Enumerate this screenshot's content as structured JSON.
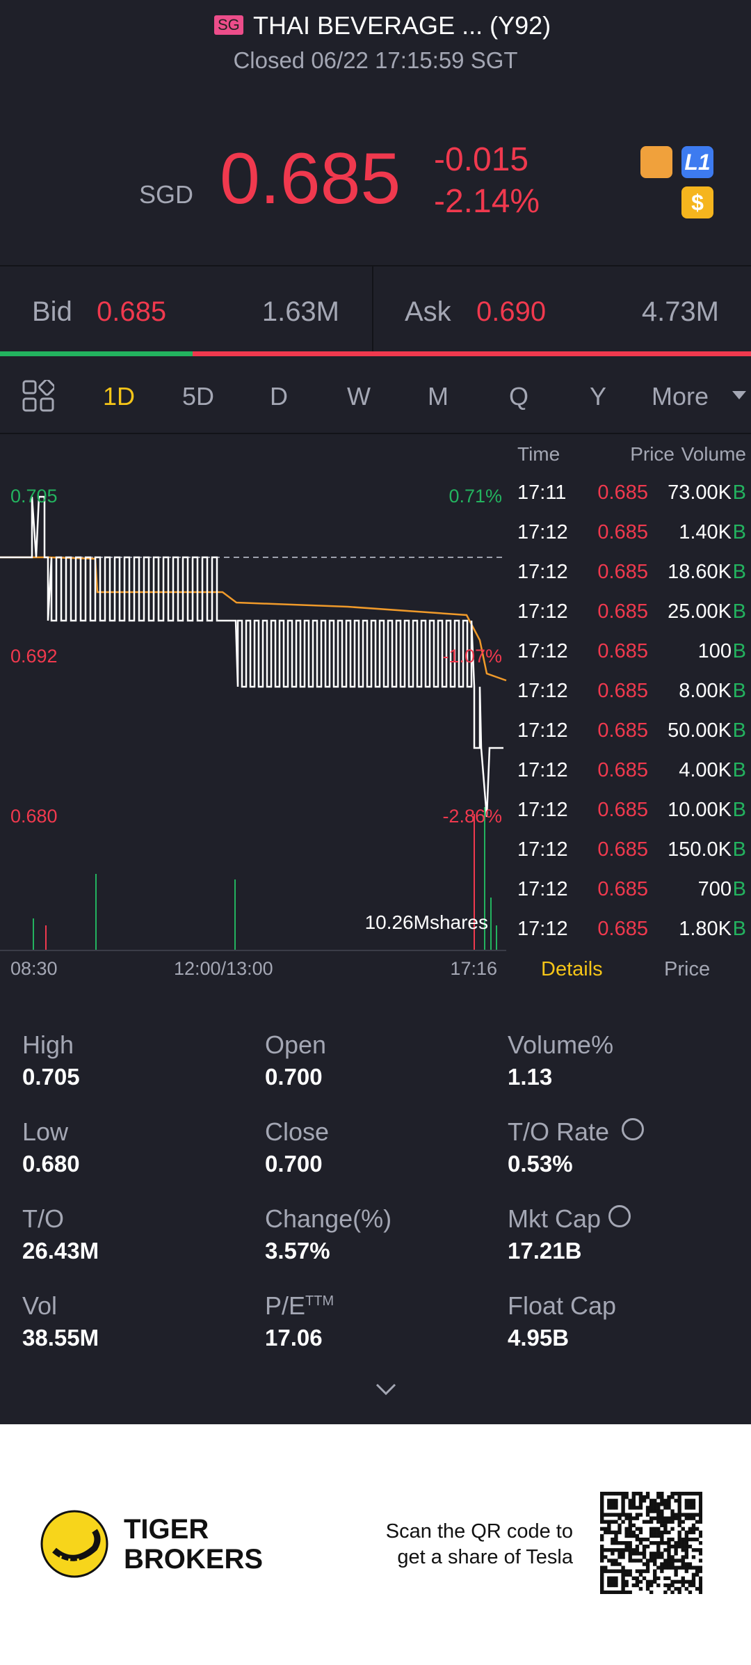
{
  "header": {
    "market": "SG",
    "title": "THAI BEVERAGE ... (Y92)",
    "status": "Closed 06/22 17:15:59 SGT"
  },
  "quote": {
    "currency": "SGD",
    "price": "0.685",
    "change": "-0.015",
    "change_pct": "-2.14%",
    "badges": [
      "L1",
      "$"
    ]
  },
  "bid_ask": {
    "bid_label": "Bid",
    "bid": "0.685",
    "bid_size": "1.63M",
    "ask_label": "Ask",
    "ask": "0.690",
    "ask_size": "4.73M"
  },
  "tabs": [
    "1D",
    "5D",
    "D",
    "W",
    "M",
    "Q",
    "Y",
    "More"
  ],
  "chart": {
    "y_labels": [
      "0.705",
      "0.692",
      "0.680"
    ],
    "pct_labels": [
      "0.71%",
      "-1.07%",
      "-2.86%"
    ],
    "x_labels": [
      "08:30",
      "12:00/13:00",
      "17:16"
    ],
    "volume_label": "10.26Mshares"
  },
  "trades": {
    "columns": [
      "Time",
      "Price",
      "Volume"
    ],
    "rows": [
      [
        "17:11",
        "0.685",
        "73.00K",
        "B"
      ],
      [
        "17:12",
        "0.685",
        "1.40K",
        "B"
      ],
      [
        "17:12",
        "0.685",
        "18.60K",
        "B"
      ],
      [
        "17:12",
        "0.685",
        "25.00K",
        "B"
      ],
      [
        "17:12",
        "0.685",
        "100",
        "B"
      ],
      [
        "17:12",
        "0.685",
        "8.00K",
        "B"
      ],
      [
        "17:12",
        "0.685",
        "50.00K",
        "B"
      ],
      [
        "17:12",
        "0.685",
        "4.00K",
        "B"
      ],
      [
        "17:12",
        "0.685",
        "10.00K",
        "B"
      ],
      [
        "17:12",
        "0.685",
        "150.0K",
        "B"
      ],
      [
        "17:12",
        "0.685",
        "700",
        "B"
      ],
      [
        "17:12",
        "0.685",
        "1.80K",
        "B"
      ]
    ],
    "tabs": [
      "Details",
      "Price"
    ]
  },
  "stats": [
    {
      "label": "High",
      "value": "0.705"
    },
    {
      "label": "Open",
      "value": "0.700"
    },
    {
      "label": "Volume%",
      "value": "1.13"
    },
    {
      "label": "Low",
      "value": "0.680"
    },
    {
      "label": "Close",
      "value": "0.700"
    },
    {
      "label": "T/O Rate",
      "value": "0.53%"
    },
    {
      "label": "T/O",
      "value": "26.43M"
    },
    {
      "label": "Change(%)",
      "value": "3.57%"
    },
    {
      "label": "Mkt Cap",
      "value": "17.21B"
    },
    {
      "label": "Vol",
      "value": "38.55M"
    },
    {
      "label": "P/E",
      "sup": "TTM",
      "value": "17.06"
    },
    {
      "label": "Float Cap",
      "value": "4.95B"
    }
  ],
  "footer": {
    "brand": [
      "TIGER",
      "BROKERS"
    ],
    "promo": [
      "Scan the QR code to",
      "get a share of Tesla"
    ]
  }
}
